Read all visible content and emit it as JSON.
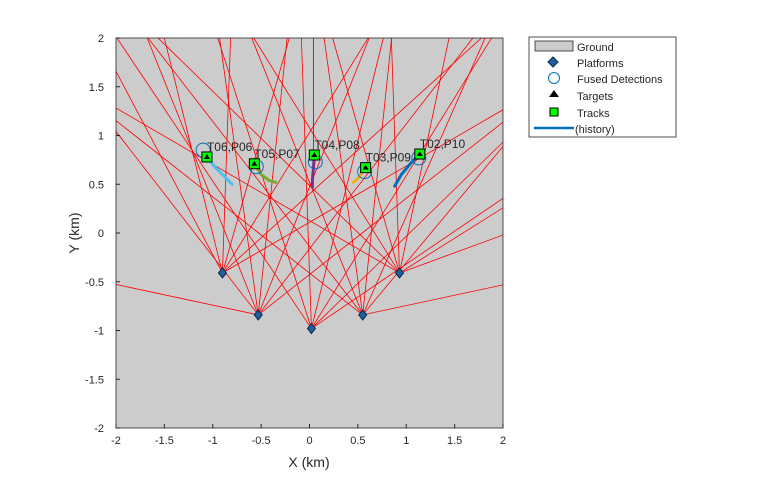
{
  "chart_data": {
    "type": "scatter",
    "title": "",
    "xlabel": "X (km)",
    "ylabel": "Y (km)",
    "xlim": [
      -2,
      2
    ],
    "ylim": [
      -2,
      2
    ],
    "xticks": [
      "-2",
      "-1.5",
      "-1",
      "-0.5",
      "0",
      "0.5",
      "1",
      "1.5",
      "2"
    ],
    "yticks": [
      "2",
      "1.5",
      "1",
      "0.5",
      "0",
      "-0.5",
      "-1",
      "-1.5",
      "-2"
    ],
    "xtick_values": [
      -2,
      -1.5,
      -1,
      -0.5,
      0,
      0.5,
      1,
      1.5,
      2
    ],
    "ytick_values": [
      2,
      1.5,
      1,
      0.5,
      0,
      -0.5,
      -1,
      -1.5,
      -2
    ],
    "ground_color": "#cccccc",
    "beam_color": "#ff0000",
    "legend": {
      "placement": "outside-top-right",
      "entries": [
        "Ground",
        "Platforms",
        "Fused Detections",
        "Targets",
        "Tracks",
        "(history)"
      ]
    },
    "platforms": [
      {
        "x": -0.9,
        "y": -0.41
      },
      {
        "x": -0.53,
        "y": -0.84
      },
      {
        "x": 0.02,
        "y": -0.98
      },
      {
        "x": 0.55,
        "y": -0.84
      },
      {
        "x": 0.93,
        "y": -0.41
      }
    ],
    "beams": [
      {
        "p": 0,
        "angles": [
          118,
          104,
          88,
          74,
          58,
          42,
          30
        ]
      },
      {
        "p": 1,
        "angles": [
          128,
          112,
          98,
          84,
          68,
          52,
          38,
          168
        ]
      },
      {
        "p": 2,
        "angles": [
          124,
          108,
          92,
          76,
          58,
          44,
          34
        ]
      },
      {
        "p": 3,
        "angles": [
          142,
          128,
          112,
          98,
          84,
          66,
          50,
          12
        ]
      },
      {
        "p": 4,
        "angles": [
          150,
          136,
          122,
          106,
          92,
          78,
          20,
          32
        ]
      }
    ],
    "tracks": [
      {
        "label": "T06,P06",
        "x": -1.06,
        "y": 0.78,
        "color": "#4DBEEE",
        "history": [
          [
            -1.06,
            0.78
          ],
          [
            -0.98,
            0.68
          ],
          [
            -0.9,
            0.6
          ],
          [
            -0.8,
            0.5
          ]
        ]
      },
      {
        "label": "T05,P07",
        "x": -0.57,
        "y": 0.71,
        "color": "#77AC30",
        "history": [
          [
            -0.57,
            0.71
          ],
          [
            -0.5,
            0.6
          ],
          [
            -0.42,
            0.54
          ],
          [
            -0.35,
            0.52
          ]
        ]
      },
      {
        "label": "T04,P08",
        "x": 0.05,
        "y": 0.8,
        "color": "#7E2F8E",
        "history": [
          [
            0.05,
            0.8
          ],
          [
            0.04,
            0.65
          ],
          [
            0.03,
            0.55
          ],
          [
            0.03,
            0.47
          ]
        ]
      },
      {
        "label": "T03,P09",
        "x": 0.58,
        "y": 0.67,
        "color": "#EDB120",
        "history": [
          [
            0.58,
            0.67
          ],
          [
            0.53,
            0.6
          ],
          [
            0.48,
            0.54
          ],
          [
            0.45,
            0.52
          ]
        ]
      },
      {
        "label": "T02,P10",
        "x": 1.14,
        "y": 0.81,
        "color": "#0072BD",
        "history": [
          [
            1.14,
            0.81
          ],
          [
            1.05,
            0.72
          ],
          [
            0.95,
            0.6
          ],
          [
            0.88,
            0.48
          ]
        ]
      }
    ],
    "detections": [
      [
        -1.1,
        0.85
      ],
      [
        -0.55,
        0.68
      ],
      [
        0.06,
        0.73
      ],
      [
        0.57,
        0.63
      ],
      [
        1.13,
        0.77
      ]
    ],
    "target_trails": [
      [
        [
          0.04,
          2
        ],
        [
          0.04,
          0.85
        ]
      ]
    ]
  }
}
